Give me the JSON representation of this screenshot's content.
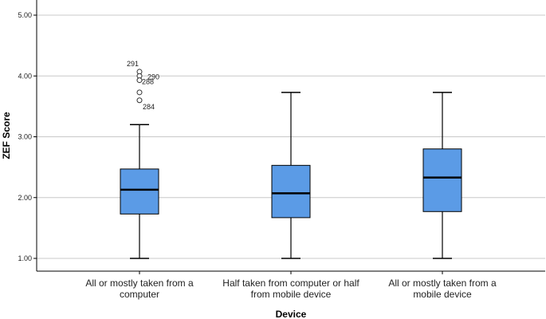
{
  "chart_data": {
    "type": "boxplot",
    "xlabel": "Device",
    "ylabel": "ZEF Score",
    "ylim": [
      0.75,
      5.0
    ],
    "yticks": [
      "1.00",
      "2.00",
      "3.00",
      "4.00",
      "5.00"
    ],
    "ytick_values": [
      1.0,
      2.0,
      3.0,
      4.0,
      5.0
    ],
    "grid": true,
    "box_color": "#5b9be6",
    "categories": [
      [
        "All or mostly taken from a",
        "computer"
      ],
      [
        "Half taken from computer or half",
        "from mobile device"
      ],
      [
        "All or mostly taken from a",
        "mobile device"
      ]
    ],
    "boxes": [
      {
        "whisker_low": 1.0,
        "q1": 1.73,
        "median": 2.13,
        "q3": 2.47,
        "whisker_high": 3.2,
        "outliers": [
          {
            "value": 4.07,
            "label": "291"
          },
          {
            "value": 4.0,
            "label": "290"
          },
          {
            "value": 3.93,
            "label": "288"
          },
          {
            "value": 3.73,
            "label": ""
          },
          {
            "value": 3.6,
            "label": "284"
          }
        ]
      },
      {
        "whisker_low": 1.0,
        "q1": 1.67,
        "median": 2.07,
        "q3": 2.53,
        "whisker_high": 3.73,
        "outliers": []
      },
      {
        "whisker_low": 1.0,
        "q1": 1.77,
        "median": 2.33,
        "q3": 2.8,
        "whisker_high": 3.73,
        "outliers": []
      }
    ]
  }
}
